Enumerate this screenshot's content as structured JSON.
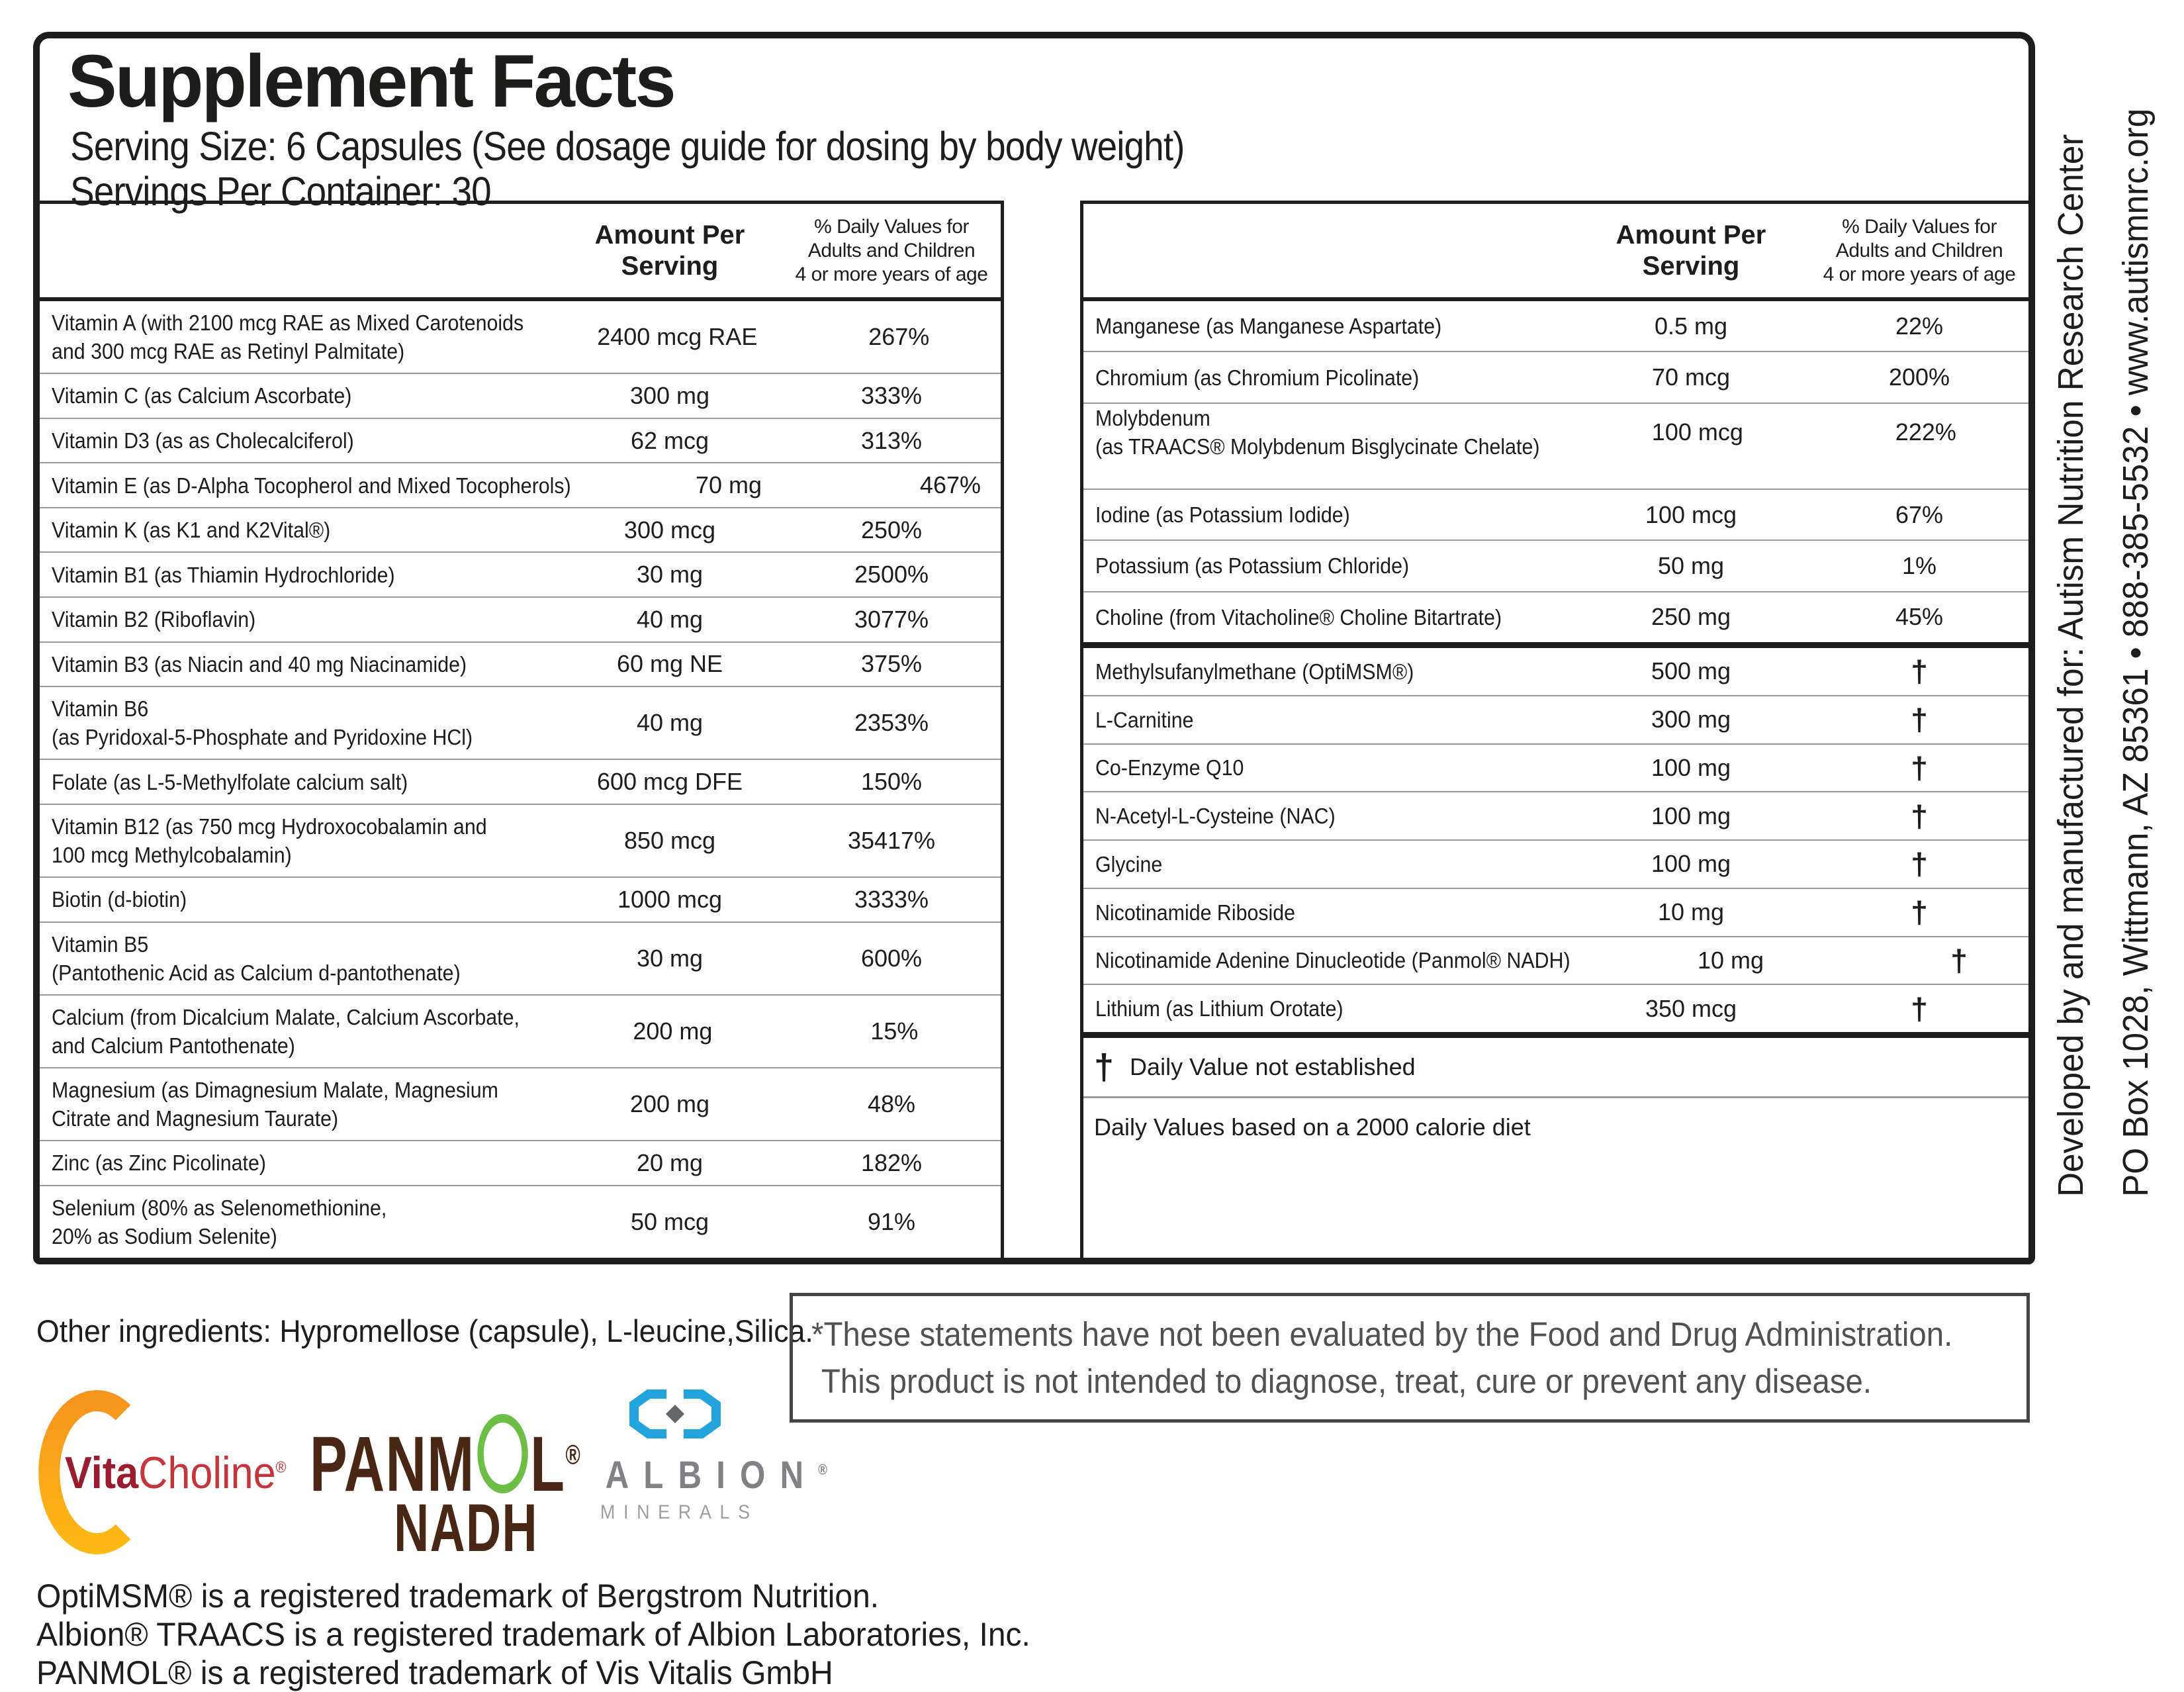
{
  "header": {
    "title": "Supplement Facts",
    "serving_size": "Serving Size: 6 Capsules (See dosage guide for dosing by body weight)",
    "servings_per_container": "Servings Per Container: 30"
  },
  "table_header": {
    "amount_lines": [
      "Amount Per",
      "Serving"
    ],
    "dv_lines": [
      "% Daily Values for",
      "Adults and Children",
      "4 or more years of age"
    ]
  },
  "left_table": {
    "rows": [
      {
        "name": [
          "Vitamin A (with 2100 mcg RAE as Mixed Carotenoids",
          "and 300 mcg RAE as Retinyl Palmitate)"
        ],
        "amount": "2400 mcg RAE",
        "dv": "267%"
      },
      {
        "name": [
          "Vitamin C (as Calcium Ascorbate)"
        ],
        "amount": "300 mg",
        "dv": "333%"
      },
      {
        "name": [
          "Vitamin D3 (as as Cholecalciferol)"
        ],
        "amount": "62 mcg",
        "dv": "313%"
      },
      {
        "name": [
          "Vitamin E (as D-Alpha Tocopherol and Mixed Tocopherols)"
        ],
        "amount": "70 mg",
        "dv": "467%"
      },
      {
        "name": [
          "Vitamin K (as K1 and K2Vital®)"
        ],
        "amount": "300 mcg",
        "dv": "250%"
      },
      {
        "name": [
          "Vitamin B1 (as Thiamin Hydrochloride)"
        ],
        "amount": "30 mg",
        "dv": "2500%"
      },
      {
        "name": [
          "Vitamin B2 (Riboflavin)"
        ],
        "amount": "40 mg",
        "dv": "3077%"
      },
      {
        "name": [
          "Vitamin B3 (as Niacin and 40 mg Niacinamide)"
        ],
        "amount": "60 mg NE",
        "dv": "375%"
      },
      {
        "name": [
          "Vitamin B6",
          "(as Pyridoxal-5-Phosphate and Pyridoxine HCl)"
        ],
        "amount": "40 mg",
        "dv": "2353%"
      },
      {
        "name": [
          "Folate (as L-5-Methylfolate calcium salt)"
        ],
        "amount": "600 mcg DFE",
        "dv": "150%"
      },
      {
        "name": [
          "Vitamin B12 (as 750 mcg Hydroxocobalamin and",
          "100 mcg Methylcobalamin)"
        ],
        "amount": "850 mcg",
        "dv": "35417%"
      },
      {
        "name": [
          "Biotin (d-biotin)"
        ],
        "amount": "1000 mcg",
        "dv": "3333%"
      },
      {
        "name": [
          "Vitamin B5",
          "(Pantothenic Acid as Calcium d-pantothenate)"
        ],
        "amount": "30 mg",
        "dv": "600%"
      },
      {
        "name": [
          "Calcium (from Dicalcium Malate, Calcium Ascorbate,",
          "and Calcium Pantothenate)"
        ],
        "amount": "200 mg",
        "dv": "15%"
      },
      {
        "name": [
          "Magnesium (as Dimagnesium Malate, Magnesium",
          "Citrate and Magnesium Taurate)"
        ],
        "amount": "200 mg",
        "dv": "48%"
      },
      {
        "name": [
          "Zinc (as Zinc Picolinate)"
        ],
        "amount": "20 mg",
        "dv": "182%"
      },
      {
        "name": [
          "Selenium (80% as Selenomethionine,",
          "20% as Sodium Selenite)"
        ],
        "amount": "50 mcg",
        "dv": "91%"
      }
    ]
  },
  "right_table": {
    "mineral_rows": [
      {
        "name": [
          "Manganese (as Manganese Aspartate)"
        ],
        "amount": "0.5 mg",
        "dv": "22%"
      },
      {
        "name": [
          "Chromium (as Chromium Picolinate)"
        ],
        "amount": "70 mcg",
        "dv": "200%"
      },
      {
        "name": [
          "Molybdenum",
          "(as TRAACS® Molybdenum Bisglycinate Chelate)"
        ],
        "amount": "100 mcg",
        "dv": "222%",
        "align": "top"
      },
      {
        "name": [
          "Iodine (as Potassium Iodide)"
        ],
        "amount": "100 mcg",
        "dv": "67%"
      },
      {
        "name": [
          "Potassium (as Potassium Chloride)"
        ],
        "amount": "50 mg",
        "dv": "1%"
      },
      {
        "name": [
          "Choline (from Vitacholine® Choline Bitartrate)"
        ],
        "amount": "250 mg",
        "dv": "45%"
      }
    ],
    "supplement_rows": [
      {
        "name": [
          "Methylsufanylmethane (OptiMSM®)"
        ],
        "amount": "500 mg",
        "dv": "†"
      },
      {
        "name": [
          "L-Carnitine"
        ],
        "amount": "300 mg",
        "dv": "†"
      },
      {
        "name": [
          "Co-Enzyme Q10"
        ],
        "amount": "100 mg",
        "dv": "†"
      },
      {
        "name": [
          "N-Acetyl-L-Cysteine (NAC)"
        ],
        "amount": "100 mg",
        "dv": "†"
      },
      {
        "name": [
          "Glycine"
        ],
        "amount": "100 mg",
        "dv": "†"
      },
      {
        "name": [
          "Nicotinamide Riboside"
        ],
        "amount": "10 mg",
        "dv": "†"
      },
      {
        "name": [
          "Nicotinamide Adenine Dinucleotide (Panmol® NADH)"
        ],
        "amount": "10 mg",
        "dv": "†"
      },
      {
        "name": [
          "Lithium (as Lithium Orotate)"
        ],
        "amount": "350 mcg",
        "dv": "†"
      }
    ],
    "dagger_symbol": "†",
    "dagger_note": "Daily Value not established",
    "dv_note": "Daily Values based on a 2000 calorie diet"
  },
  "other_ingredients": "Other ingredients: Hypromellose (capsule), L-leucine,Silica.",
  "disclaimer_lines": [
    "*These statements have not been evaluated by the Food and Drug Administration.",
    "This product is not intended to diagnose, treat, cure or prevent any disease."
  ],
  "logos": {
    "vitacholine": {
      "vita": "Vita",
      "choline": "Choline",
      "reg": "®"
    },
    "panmol": {
      "pre": "PANM",
      "post": "L",
      "reg": "®",
      "line2": "NADH"
    },
    "albion": {
      "name": "ALBION",
      "reg": "®",
      "subtitle": "MINERALS"
    }
  },
  "trademarks": [
    "OptiMSM® is a registered trademark of Bergstrom Nutrition.",
    "Albion® TRAACS is a registered trademark of Albion Laboratories, Inc.",
    "PANMOL® is a registered trademark of Vis Vitalis GmbH"
  ],
  "sidebar": {
    "line1": "Developed by and manufactured for: Autism Nutrition Research Center",
    "line2": "PO Box 1028, Wittmann, AZ 85361  •  888-385-5532  •  www.autismnrc.org"
  },
  "colors": {
    "text": "#1d1d1b",
    "hairline": "#9b9b9b",
    "disclaimer_text": "#515151",
    "vita_ring_top": "#F7941E",
    "vita_ring_bottom": "#FDB913",
    "vita_dark_red": "#9B1B2F",
    "vita_red": "#C4363B",
    "panmol_brown": "#4a2615",
    "panmol_green": "#6cbe45",
    "albion_blue": "#21A3DC",
    "albion_gray": "#808285",
    "albion_light_gray": "#9C9EA1",
    "albion_diamond_gray": "#63666A"
  }
}
